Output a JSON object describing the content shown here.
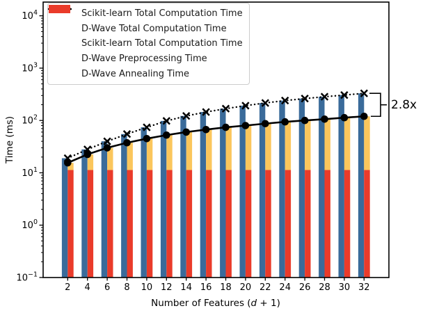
{
  "figure": {
    "ylabel": "Time (ms)",
    "xlabel_prefix": "Number of Features (",
    "xlabel_var": "d",
    "xlabel_suffix": " + 1)",
    "annotation": "2.8x"
  },
  "legend": {
    "items": [
      {
        "label": "Scikit-learn Total Computation Time",
        "handle": "dotted-x-line",
        "color": "#000000"
      },
      {
        "label": "D-Wave Total Computation Time",
        "handle": "solid-circle-line",
        "color": "#000000"
      },
      {
        "label": "Scikit-learn Total Computation Time",
        "handle": "patch",
        "color": "#3A6B9A"
      },
      {
        "label": "D-Wave Preprocessing Time",
        "handle": "patch",
        "color": "#FBC65C"
      },
      {
        "label": "D-Wave Annealing Time",
        "handle": "patch",
        "color": "#EA3B2A"
      }
    ]
  },
  "chart_data": {
    "type": "bar",
    "subtype": "grouped-stacked bars with overlaid lines, log y-axis",
    "title": "",
    "xlabel": "Number of Features (d + 1)",
    "ylabel": "Time (ms)",
    "x": [
      2,
      4,
      6,
      8,
      10,
      12,
      14,
      16,
      18,
      20,
      22,
      24,
      26,
      28,
      30,
      32
    ],
    "ylim_log10": [
      -1,
      4.26
    ],
    "y_tick_exponents": [
      4,
      3,
      2,
      1,
      0,
      -1
    ],
    "grid": "off",
    "legend_position": "upper left",
    "series": [
      {
        "name": "Scikit-learn Total Computation Time",
        "kind": "line",
        "style": "dotted",
        "marker": "x",
        "color": "#000000",
        "values": [
          19,
          28,
          40,
          55,
          74,
          98,
          122,
          145,
          168,
          192,
          216,
          240,
          262,
          284,
          306,
          330
        ]
      },
      {
        "name": "D-Wave Total Computation Time",
        "kind": "line",
        "style": "solid",
        "marker": "circle",
        "color": "#000000",
        "values": [
          15.5,
          22.5,
          30,
          37.5,
          45,
          52.5,
          60,
          67,
          74,
          80,
          87,
          94,
          100,
          106,
          113,
          120
        ]
      },
      {
        "name": "Scikit-learn Total Computation Time",
        "kind": "bar",
        "color": "#3A6B9A",
        "values": [
          19,
          28,
          40,
          55,
          74,
          98,
          122,
          145,
          168,
          192,
          216,
          240,
          262,
          284,
          306,
          330
        ]
      },
      {
        "name": "D-Wave Preprocessing Time",
        "kind": "bar-stacked-upper",
        "color": "#FBC65C",
        "values": [
          4.2,
          11.2,
          18.7,
          26.2,
          33.7,
          41.2,
          48.7,
          55.7,
          62.7,
          68.7,
          75.7,
          82.7,
          88.7,
          94.7,
          101.7,
          108.7
        ]
      },
      {
        "name": "D-Wave Annealing Time",
        "kind": "bar-stacked-lower",
        "color": "#EA3B2A",
        "values": [
          11.3,
          11.3,
          11.3,
          11.3,
          11.3,
          11.3,
          11.3,
          11.3,
          11.3,
          11.3,
          11.3,
          11.3,
          11.3,
          11.3,
          11.3,
          11.3
        ]
      }
    ],
    "annotation": {
      "text": "2.8x",
      "at_x": 32,
      "between": [
        "Scikit-learn Total Computation Time",
        "D-Wave Total Computation Time"
      ]
    }
  }
}
